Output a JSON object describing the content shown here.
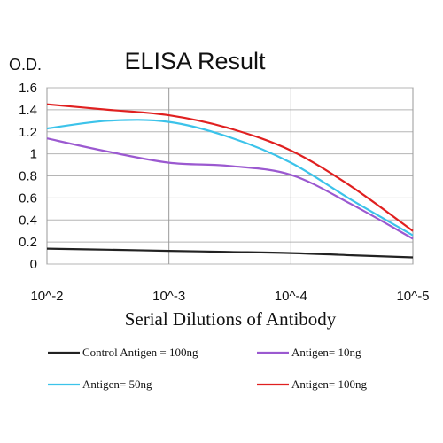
{
  "chart_data": {
    "type": "line",
    "title": "ELISA Result",
    "ylabel": "O.D.",
    "xlabel": "Serial Dilutions of Antibody",
    "x_categories": [
      "10^-2",
      "10^-3",
      "10^-4",
      "10^-5"
    ],
    "x": [
      -2,
      -2.5,
      -3,
      -3.5,
      -4,
      -4.5,
      -5
    ],
    "ylim": [
      0,
      1.6
    ],
    "y_ticks": [
      "0",
      "0.2",
      "0.4",
      "0.6",
      "0.8",
      "1",
      "1.2",
      "1.4",
      "1.6"
    ],
    "grid": true,
    "legend_position": "bottom",
    "series": [
      {
        "name": "Control Antigen = 100ng",
        "color": "#222222",
        "values": [
          0.14,
          0.13,
          0.12,
          0.11,
          0.1,
          0.08,
          0.06
        ]
      },
      {
        "name": "Antigen= 10ng",
        "color": "#9b59d0",
        "values": [
          1.14,
          1.02,
          0.92,
          0.89,
          0.81,
          0.54,
          0.23
        ]
      },
      {
        "name": "Antigen= 50ng",
        "color": "#3cc3ea",
        "values": [
          1.23,
          1.3,
          1.29,
          1.15,
          0.92,
          0.58,
          0.26
        ]
      },
      {
        "name": "Antigen= 100ng",
        "color": "#e02020",
        "values": [
          1.45,
          1.4,
          1.35,
          1.23,
          1.03,
          0.7,
          0.3
        ]
      }
    ]
  }
}
